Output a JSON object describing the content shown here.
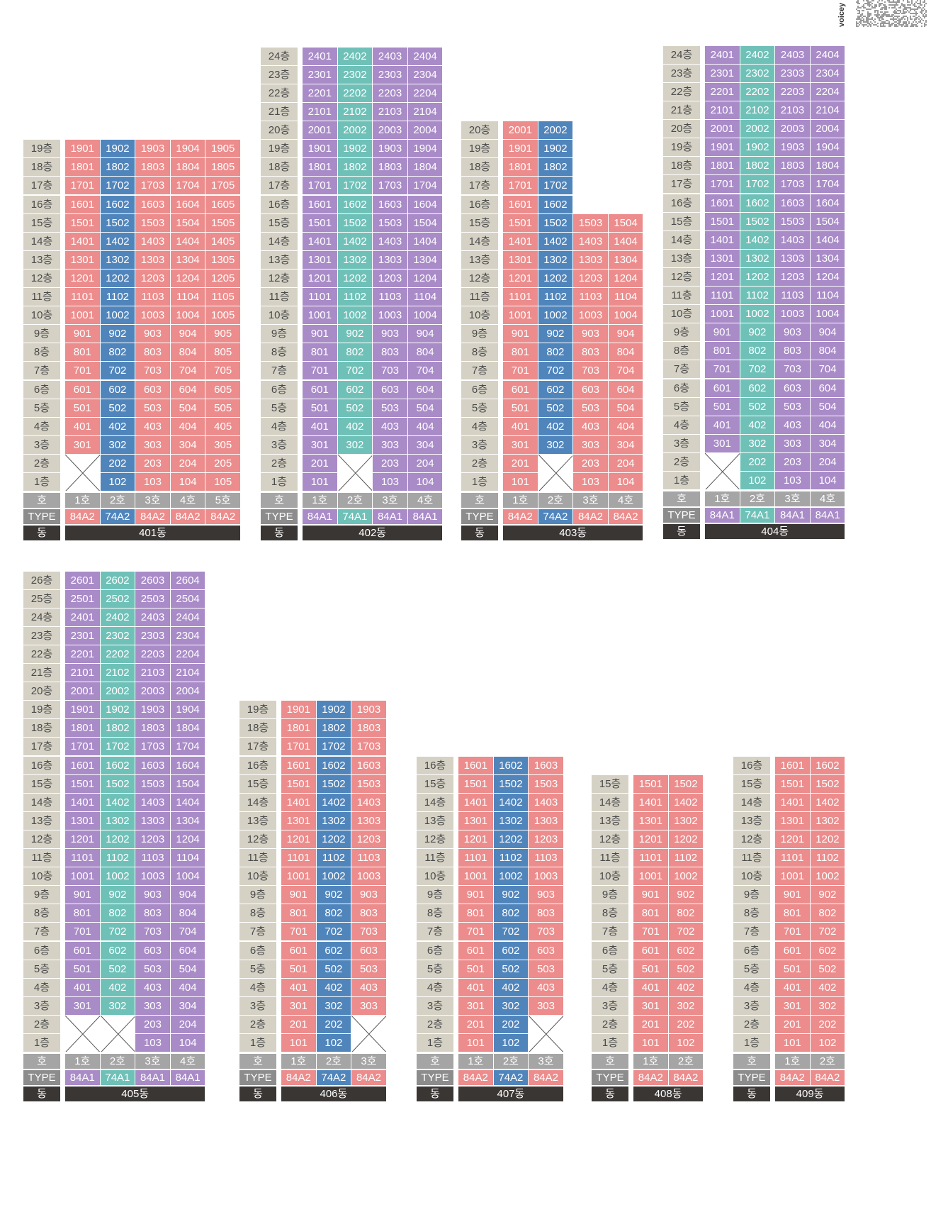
{
  "colors": {
    "pink": "#ec8c8c",
    "blue": "#5085bc",
    "purple": "#a98bc8",
    "teal": "#6fc1b8",
    "floor_bg": "#d5d2c5",
    "ho_bg": "#a5a5a5",
    "type_bg": "#8c8c8c",
    "dong_bg": "#3a3634"
  },
  "logo": {
    "text": "voicey",
    "icon": "qr-code-icon"
  },
  "row_labels": {
    "ho": "호",
    "type": "TYPE",
    "dong": "동"
  },
  "buildings": [
    {
      "name": "401동",
      "top_floor": 19,
      "unit_count": 5,
      "ho_labels": [
        "1호",
        "2호",
        "3호",
        "4호",
        "5호"
      ],
      "types": [
        "84A2",
        "74A2",
        "84A2",
        "84A2",
        "84A2"
      ],
      "colors": [
        "pink",
        "blue",
        "pink",
        "pink",
        "pink"
      ],
      "col_top_floor": [
        19,
        19,
        19,
        19,
        19
      ],
      "col_bottom_floor": [
        3,
        1,
        1,
        1,
        1
      ],
      "empty_spans": [
        {
          "col_start": 0,
          "col_end": 0,
          "floor_start": 1,
          "floor_end": 2
        }
      ]
    },
    {
      "name": "402동",
      "top_floor": 24,
      "unit_count": 4,
      "ho_labels": [
        "1호",
        "2호",
        "3호",
        "4호"
      ],
      "types": [
        "84A1",
        "74A1",
        "84A1",
        "84A1"
      ],
      "colors": [
        "purple",
        "teal",
        "purple",
        "purple"
      ],
      "col_top_floor": [
        24,
        24,
        24,
        24
      ],
      "col_bottom_floor": [
        1,
        3,
        1,
        1
      ],
      "empty_spans": [
        {
          "col_start": 1,
          "col_end": 1,
          "floor_start": 1,
          "floor_end": 2
        }
      ]
    },
    {
      "name": "403동",
      "top_floor": 20,
      "unit_count": 4,
      "ho_labels": [
        "1호",
        "2호",
        "3호",
        "4호"
      ],
      "types": [
        "84A2",
        "74A2",
        "84A2",
        "84A2"
      ],
      "colors": [
        "pink",
        "blue",
        "pink",
        "pink"
      ],
      "col_top_floor": [
        20,
        20,
        15,
        15
      ],
      "col_bottom_floor": [
        1,
        3,
        1,
        1
      ],
      "empty_spans": [
        {
          "col_start": 1,
          "col_end": 1,
          "floor_start": 1,
          "floor_end": 2
        }
      ]
    },
    {
      "name": "404동",
      "top_floor": 24,
      "unit_count": 4,
      "ho_labels": [
        "1호",
        "2호",
        "3호",
        "4호"
      ],
      "types": [
        "84A1",
        "74A1",
        "84A1",
        "84A1"
      ],
      "colors": [
        "purple",
        "teal",
        "purple",
        "purple"
      ],
      "col_top_floor": [
        24,
        24,
        24,
        24
      ],
      "col_bottom_floor": [
        3,
        1,
        1,
        1
      ],
      "empty_spans": [
        {
          "col_start": 0,
          "col_end": 0,
          "floor_start": 1,
          "floor_end": 2
        }
      ]
    },
    {
      "name": "405동",
      "top_floor": 26,
      "unit_count": 4,
      "ho_labels": [
        "1호",
        "2호",
        "3호",
        "4호"
      ],
      "types": [
        "84A1",
        "74A1",
        "84A1",
        "84A1"
      ],
      "colors": [
        "purple",
        "teal",
        "purple",
        "purple"
      ],
      "col_top_floor": [
        26,
        26,
        26,
        26
      ],
      "col_bottom_floor": [
        3,
        3,
        1,
        1
      ],
      "empty_spans": [
        {
          "col_start": 0,
          "col_end": 0,
          "floor_start": 1,
          "floor_end": 2
        },
        {
          "col_start": 1,
          "col_end": 1,
          "floor_start": 1,
          "floor_end": 2
        }
      ]
    },
    {
      "name": "406동",
      "top_floor": 19,
      "unit_count": 3,
      "ho_labels": [
        "1호",
        "2호",
        "3호"
      ],
      "types": [
        "84A2",
        "74A2",
        "84A2"
      ],
      "colors": [
        "pink",
        "blue",
        "pink"
      ],
      "col_top_floor": [
        19,
        19,
        19
      ],
      "col_bottom_floor": [
        1,
        1,
        3
      ],
      "empty_spans": [
        {
          "col_start": 2,
          "col_end": 2,
          "floor_start": 1,
          "floor_end": 2
        }
      ]
    },
    {
      "name": "407동",
      "top_floor": 16,
      "unit_count": 3,
      "ho_labels": [
        "1호",
        "2호",
        "3호"
      ],
      "types": [
        "84A2",
        "74A2",
        "84A2"
      ],
      "colors": [
        "pink",
        "blue",
        "pink"
      ],
      "col_top_floor": [
        16,
        16,
        16
      ],
      "col_bottom_floor": [
        1,
        1,
        3
      ],
      "empty_spans": [
        {
          "col_start": 2,
          "col_end": 2,
          "floor_start": 1,
          "floor_end": 2
        }
      ]
    },
    {
      "name": "408동",
      "top_floor": 15,
      "unit_count": 2,
      "ho_labels": [
        "1호",
        "2호"
      ],
      "types": [
        "84A2",
        "84A2"
      ],
      "colors": [
        "pink",
        "pink"
      ],
      "col_top_floor": [
        15,
        15
      ],
      "col_bottom_floor": [
        1,
        1
      ],
      "empty_spans": []
    },
    {
      "name": "409동",
      "top_floor": 16,
      "unit_count": 2,
      "ho_labels": [
        "1호",
        "2호"
      ],
      "types": [
        "84A2",
        "84A2"
      ],
      "colors": [
        "pink",
        "pink"
      ],
      "col_top_floor": [
        16,
        16
      ],
      "col_bottom_floor": [
        1,
        1
      ],
      "empty_spans": []
    }
  ]
}
